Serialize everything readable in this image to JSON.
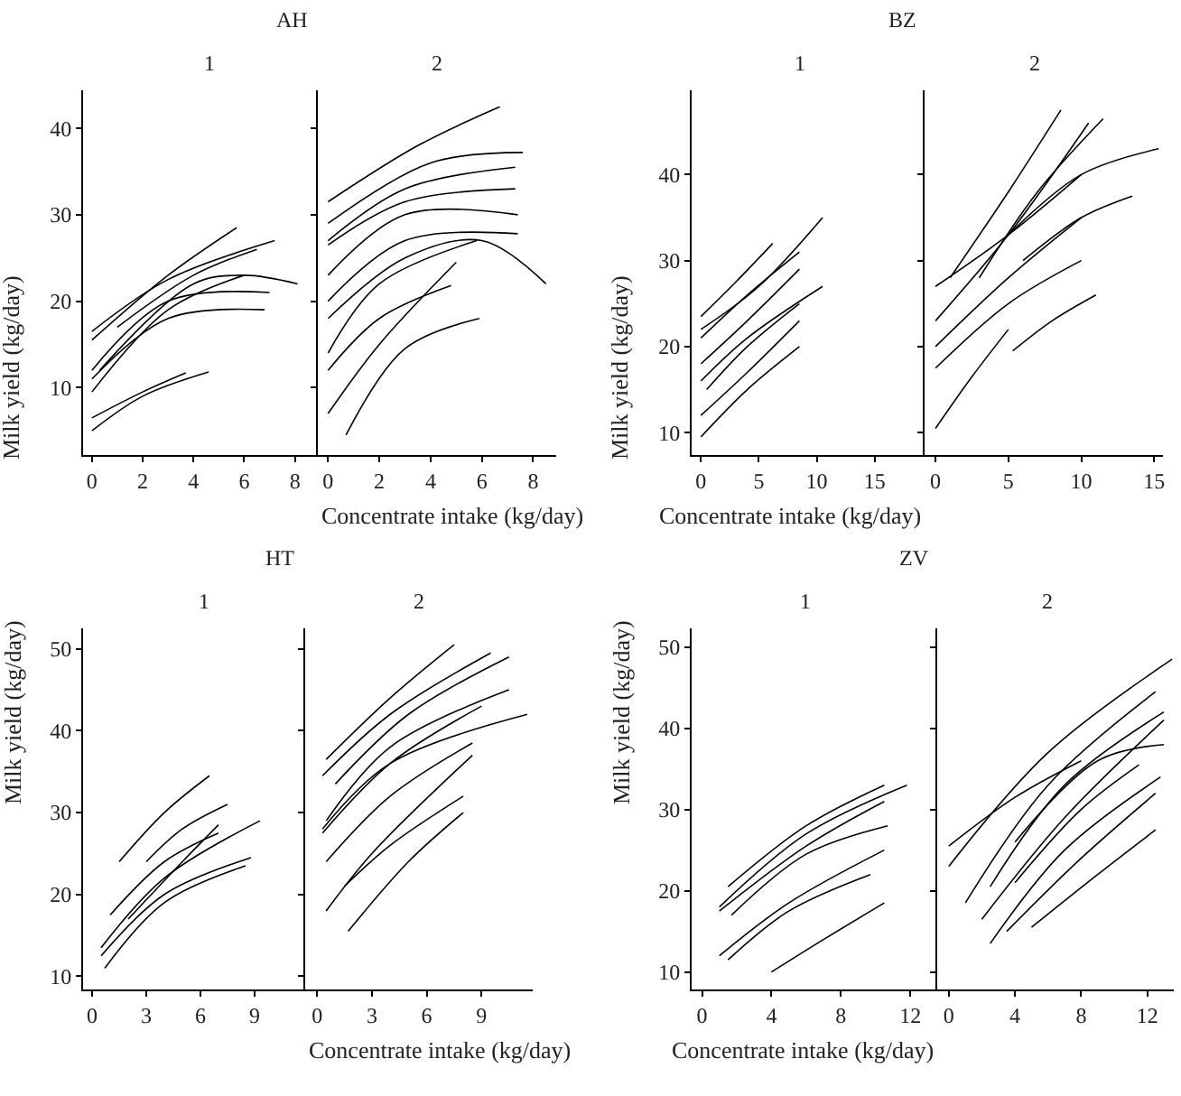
{
  "chart_data": [
    {
      "type": "line",
      "title": "AH",
      "subtitle": "1",
      "xlabel": "Concentrate intake (kg/day)",
      "ylabel": "Milk yield (kg/day)",
      "xlim": [
        -0.35,
        8.9
      ],
      "ylim": [
        2.2,
        44.4
      ],
      "xticks": [
        0,
        2,
        4,
        6,
        8
      ],
      "yticks": [
        10,
        20,
        30,
        40
      ],
      "color": "#000000",
      "series": [
        {
          "x": [
            0,
            3,
            5.7
          ],
          "values": [
            15.5,
            23,
            28.5
          ]
        },
        {
          "x": [
            0,
            3,
            7.2
          ],
          "values": [
            16.5,
            22.5,
            27
          ]
        },
        {
          "x": [
            0,
            3,
            7
          ],
          "values": [
            12,
            20,
            21
          ]
        },
        {
          "x": [
            0,
            3,
            6.8
          ],
          "values": [
            11,
            18,
            19
          ]
        },
        {
          "x": [
            0,
            3,
            6
          ],
          "values": [
            9.5,
            19,
            23
          ]
        },
        {
          "x": [
            0.3,
            4,
            6,
            8.1
          ],
          "values": [
            12,
            22,
            23,
            22
          ]
        },
        {
          "x": [
            0,
            2,
            4.6
          ],
          "values": [
            5,
            9,
            11.8
          ]
        },
        {
          "x": [
            0,
            2,
            3.7
          ],
          "values": [
            6.5,
            9.5,
            11.7
          ]
        },
        {
          "x": [
            1,
            4,
            6.5
          ],
          "values": [
            17,
            23,
            26
          ]
        }
      ]
    },
    {
      "type": "line",
      "subtitle": "2",
      "xlim": [
        -0.4,
        8.9
      ],
      "ylim": [
        2.2,
        44.4
      ],
      "xticks": [
        0,
        2,
        4,
        6,
        8
      ],
      "yticks": [
        10,
        20,
        30,
        40
      ],
      "tick_labels": "x",
      "color": "#000000",
      "series": [
        {
          "x": [
            0,
            3.5,
            6.7
          ],
          "values": [
            31.5,
            38,
            42.5
          ]
        },
        {
          "x": [
            0,
            4,
            7.6
          ],
          "values": [
            29,
            36,
            37.2
          ]
        },
        {
          "x": [
            0,
            3,
            7.3
          ],
          "values": [
            26.5,
            31.5,
            33
          ]
        },
        {
          "x": [
            0,
            3,
            7.4
          ],
          "values": [
            23,
            30,
            30
          ]
        },
        {
          "x": [
            0,
            3,
            7.4
          ],
          "values": [
            20,
            27,
            27.8
          ]
        },
        {
          "x": [
            0,
            3,
            6,
            8.5
          ],
          "values": [
            18,
            25,
            27,
            22
          ]
        },
        {
          "x": [
            0,
            2,
            5.8
          ],
          "values": [
            14,
            22,
            27
          ]
        },
        {
          "x": [
            0,
            2,
            4.8
          ],
          "values": [
            12,
            18,
            21.8
          ]
        },
        {
          "x": [
            0,
            2,
            5
          ],
          "values": [
            7,
            15,
            24.5
          ]
        },
        {
          "x": [
            0.7,
            3,
            5.9
          ],
          "values": [
            4.5,
            14.5,
            18
          ]
        },
        {
          "x": [
            0,
            3,
            7.3
          ],
          "values": [
            27,
            33,
            35.5
          ]
        }
      ]
    },
    {
      "type": "line",
      "title": "BZ",
      "subtitle": "1",
      "xlabel": "Concentrate intake (kg/day)",
      "ylabel": "Milk yield (kg/day)",
      "xlim": [
        -0.8,
        19.3
      ],
      "ylim": [
        7.4,
        49.8
      ],
      "xticks": [
        0,
        5,
        10,
        15
      ],
      "yticks": [
        10,
        20,
        30,
        40
      ],
      "color": "#000000",
      "series": [
        {
          "x": [
            0,
            3,
            6.2
          ],
          "values": [
            23.5,
            27.5,
            32
          ]
        },
        {
          "x": [
            0,
            5,
            10.5
          ],
          "values": [
            22,
            27,
            35
          ]
        },
        {
          "x": [
            0,
            4,
            8.5
          ],
          "values": [
            21,
            26,
            31
          ]
        },
        {
          "x": [
            0,
            4,
            8.5
          ],
          "values": [
            18,
            23,
            29
          ]
        },
        {
          "x": [
            0,
            4,
            10.5
          ],
          "values": [
            16,
            21,
            27
          ]
        },
        {
          "x": [
            0,
            4,
            8.5
          ],
          "values": [
            12,
            17,
            23
          ]
        },
        {
          "x": [
            0,
            4,
            8.5
          ],
          "values": [
            9.5,
            15,
            20
          ]
        },
        {
          "x": [
            0.5,
            4,
            8.5
          ],
          "values": [
            15,
            20,
            25
          ]
        }
      ]
    },
    {
      "type": "line",
      "subtitle": "2",
      "xlim": [
        -0.75,
        15.6
      ],
      "ylim": [
        7.4,
        49.8
      ],
      "xticks": [
        0,
        5,
        10,
        15
      ],
      "yticks": [
        10,
        20,
        30,
        40
      ],
      "tick_labels": "x",
      "color": "#000000",
      "series": [
        {
          "x": [
            1,
            5,
            8.6
          ],
          "values": [
            28,
            38,
            47.5
          ]
        },
        {
          "x": [
            0,
            5,
            10
          ],
          "values": [
            27,
            33,
            40
          ]
        },
        {
          "x": [
            0,
            5,
            10.5
          ],
          "values": [
            23,
            33,
            46
          ]
        },
        {
          "x": [
            0,
            5,
            10
          ],
          "values": [
            20,
            28,
            35
          ]
        },
        {
          "x": [
            0,
            5,
            10
          ],
          "values": [
            17.5,
            25,
            30
          ]
        },
        {
          "x": [
            0,
            2.5,
            5
          ],
          "values": [
            10.5,
            16.5,
            22
          ]
        },
        {
          "x": [
            5.3,
            8,
            11
          ],
          "values": [
            19.5,
            23,
            26
          ]
        },
        {
          "x": [
            5,
            10,
            15.3
          ],
          "values": [
            33,
            40,
            43
          ]
        },
        {
          "x": [
            6,
            10,
            13.5
          ],
          "values": [
            30,
            35,
            37.5
          ]
        },
        {
          "x": [
            3,
            7,
            11.5
          ],
          "values": [
            28,
            38,
            46.5
          ]
        }
      ]
    },
    {
      "type": "line",
      "title": "HT",
      "subtitle": "1",
      "xlabel": "Concentrate intake (kg/day)",
      "ylabel": "Milk yield (kg/day)",
      "xlim": [
        -0.5,
        11.8
      ],
      "ylim": [
        8.4,
        52.5
      ],
      "xticks": [
        0,
        3,
        6,
        9
      ],
      "yticks": [
        10,
        20,
        30,
        40,
        50
      ],
      "color": "#000000",
      "series": [
        {
          "x": [
            1.5,
            4,
            6.5
          ],
          "values": [
            24,
            30,
            34.5
          ]
        },
        {
          "x": [
            3,
            5,
            7.5
          ],
          "values": [
            24,
            28,
            31
          ]
        },
        {
          "x": [
            1,
            4,
            7
          ],
          "values": [
            17.5,
            24,
            27.5
          ]
        },
        {
          "x": [
            0.5,
            4,
            9.3
          ],
          "values": [
            13.5,
            22,
            29
          ]
        },
        {
          "x": [
            0.5,
            4,
            8.8
          ],
          "values": [
            12.5,
            20,
            24.5
          ]
        },
        {
          "x": [
            0.7,
            4,
            8.5
          ],
          "values": [
            11,
            19,
            23.5
          ]
        },
        {
          "x": [
            2,
            5,
            7
          ],
          "values": [
            17,
            24,
            28.5
          ]
        }
      ]
    },
    {
      "type": "line",
      "subtitle": "2",
      "xlim": [
        -0.65,
        11.8
      ],
      "ylim": [
        8.4,
        52.5
      ],
      "xticks": [
        0,
        3,
        6,
        9
      ],
      "yticks": [
        10,
        20,
        30,
        40,
        50
      ],
      "tick_labels": "x",
      "color": "#000000",
      "series": [
        {
          "x": [
            0.5,
            4,
            7.5
          ],
          "values": [
            36.5,
            44,
            50.5
          ]
        },
        {
          "x": [
            0.3,
            4,
            9.5
          ],
          "values": [
            34.5,
            42,
            49.5
          ]
        },
        {
          "x": [
            1,
            5,
            10.5
          ],
          "values": [
            33.5,
            42,
            49
          ]
        },
        {
          "x": [
            0.5,
            4,
            10.5
          ],
          "values": [
            29,
            38,
            45
          ]
        },
        {
          "x": [
            0.3,
            4,
            11.5
          ],
          "values": [
            28,
            36,
            42
          ]
        },
        {
          "x": [
            0.5,
            4,
            8.5
          ],
          "values": [
            24,
            32,
            38.5
          ]
        },
        {
          "x": [
            0.5,
            3,
            8.5
          ],
          "values": [
            18,
            25,
            37
          ]
        },
        {
          "x": [
            1.5,
            4,
            8
          ],
          "values": [
            21,
            26,
            32
          ]
        },
        {
          "x": [
            1.7,
            5,
            8
          ],
          "values": [
            15.5,
            24,
            30
          ]
        },
        {
          "x": [
            0.3,
            4,
            9
          ],
          "values": [
            27.5,
            36,
            43
          ]
        }
      ]
    },
    {
      "type": "line",
      "title": "ZV",
      "subtitle": "1",
      "xlabel": "Concentrate intake (kg/day)",
      "ylabel": "Milk yield (kg/day)",
      "xlim": [
        -0.6,
        13.55
      ],
      "ylim": [
        7.85,
        52.3
      ],
      "xticks": [
        0,
        4,
        8,
        12
      ],
      "yticks": [
        10,
        20,
        30,
        40,
        50
      ],
      "color": "#000000",
      "series": [
        {
          "x": [
            1.5,
            6,
            10.5
          ],
          "values": [
            20.5,
            28,
            33
          ]
        },
        {
          "x": [
            1,
            6,
            11.8
          ],
          "values": [
            18,
            27,
            33
          ]
        },
        {
          "x": [
            1,
            6,
            10.5
          ],
          "values": [
            17.5,
            25.5,
            31
          ]
        },
        {
          "x": [
            1.7,
            6,
            10.7
          ],
          "values": [
            17,
            24.5,
            28
          ]
        },
        {
          "x": [
            1,
            5,
            10.5
          ],
          "values": [
            12,
            18.5,
            25
          ]
        },
        {
          "x": [
            1.5,
            5,
            9.7
          ],
          "values": [
            11.5,
            17.5,
            22
          ]
        },
        {
          "x": [
            4,
            7,
            10.5
          ],
          "values": [
            10,
            14,
            18.5
          ]
        }
      ]
    },
    {
      "type": "line",
      "subtitle": "2",
      "xlim": [
        -0.7,
        13.6
      ],
      "ylim": [
        7.85,
        52.3
      ],
      "xticks": [
        0,
        4,
        8,
        12
      ],
      "yticks": [
        10,
        20,
        30,
        40,
        50
      ],
      "tick_labels": "x",
      "color": "#000000",
      "series": [
        {
          "x": [
            0,
            4,
            8
          ],
          "values": [
            25.5,
            31.5,
            36
          ]
        },
        {
          "x": [
            0,
            6,
            13.5
          ],
          "values": [
            23,
            37,
            48.5
          ]
        },
        {
          "x": [
            1,
            6,
            12.5
          ],
          "values": [
            18.5,
            33,
            44.5
          ]
        },
        {
          "x": [
            2.5,
            7,
            13
          ],
          "values": [
            20.5,
            33,
            42
          ]
        },
        {
          "x": [
            4,
            9,
            13
          ],
          "values": [
            26,
            36,
            38
          ]
        },
        {
          "x": [
            2,
            7,
            13
          ],
          "values": [
            16.5,
            29,
            41
          ]
        },
        {
          "x": [
            2.5,
            7,
            12.8
          ],
          "values": [
            13.5,
            25,
            34
          ]
        },
        {
          "x": [
            3.5,
            8,
            12.5
          ],
          "values": [
            15,
            24,
            32
          ]
        },
        {
          "x": [
            5,
            9,
            12.5
          ],
          "values": [
            15.5,
            22,
            27.5
          ]
        },
        {
          "x": [
            4,
            8,
            11.5
          ],
          "values": [
            21,
            30,
            35.5
          ]
        }
      ]
    }
  ]
}
